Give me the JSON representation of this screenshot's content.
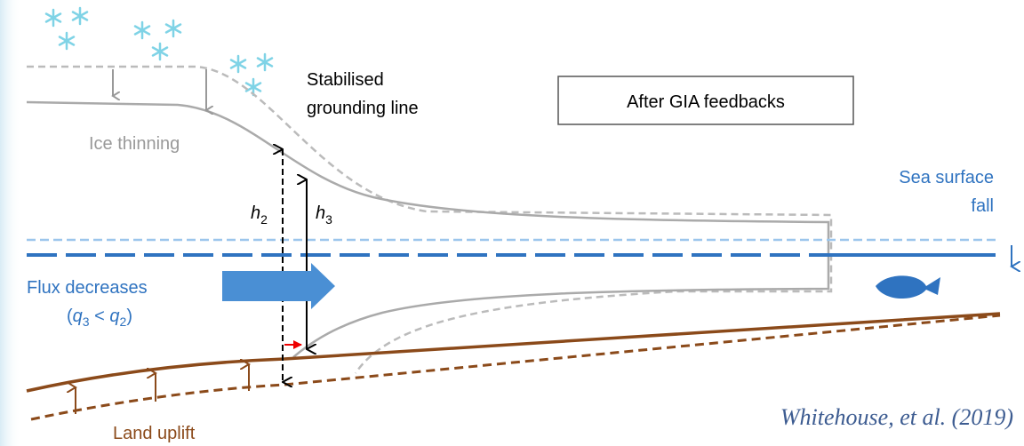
{
  "labels": {
    "grounding_line": [
      "Stabilised",
      "grounding line"
    ],
    "panel_title": "After GIA feedbacks",
    "ice_thinning": "Ice thinning",
    "sea_surface": [
      "Sea surface",
      "fall"
    ],
    "flux": "Flux decreases",
    "flux_relation": {
      "open": "(",
      "q_a": "q",
      "sub_a": "3",
      "op": " < ",
      "q_b": "q",
      "sub_b": "2",
      "close": ")"
    },
    "h2": {
      "base": "h",
      "sub": "2"
    },
    "h3": {
      "base": "h",
      "sub": "3"
    },
    "land_uplift": "Land uplift",
    "citation": "Whitehouse, et al. (2019)"
  }
}
